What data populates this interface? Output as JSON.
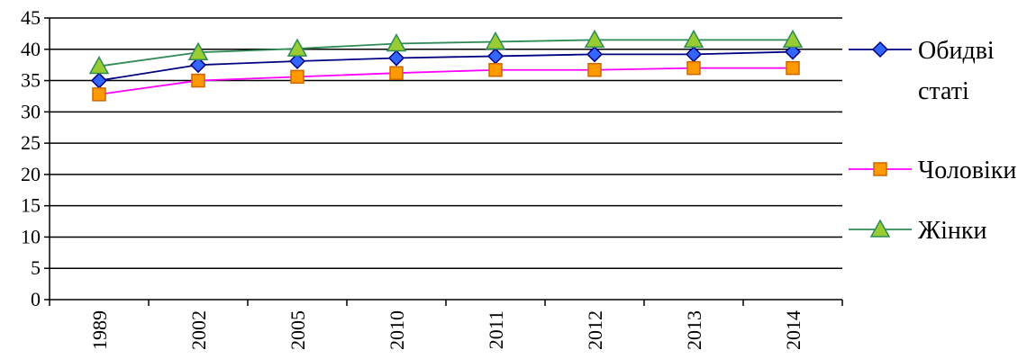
{
  "chart_data": {
    "type": "line",
    "categories": [
      "1989",
      "2002",
      "2005",
      "2010",
      "2011",
      "2012",
      "2013",
      "2014"
    ],
    "ylim": [
      0,
      45
    ],
    "yticks": [
      0,
      5,
      10,
      15,
      20,
      25,
      30,
      35,
      40,
      45
    ],
    "grid": "horizontal",
    "legend_position": "right",
    "series": [
      {
        "name_lines": [
          "Обидві",
          "статі"
        ],
        "name": "Обидві статі",
        "values": [
          35.0,
          37.5,
          38.1,
          38.6,
          38.9,
          39.2,
          39.2,
          39.6
        ],
        "line_color": "#000080",
        "marker": "diamond",
        "marker_fill": "#3366ff",
        "marker_stroke": "#000080"
      },
      {
        "name_lines": [
          "Чоловіки"
        ],
        "name": "Чоловіки",
        "values": [
          32.8,
          35.0,
          35.6,
          36.2,
          36.7,
          36.7,
          37.0,
          37.0
        ],
        "line_color": "#ff00ff",
        "marker": "square",
        "marker_fill": "#ff9900",
        "marker_stroke": "#cc6600"
      },
      {
        "name_lines": [
          "Жінки"
        ],
        "name": "Жінки",
        "values": [
          37.3,
          39.5,
          40.1,
          40.9,
          41.2,
          41.5,
          41.5,
          41.5
        ],
        "line_color": "#2e8b57",
        "marker": "triangle",
        "marker_fill": "#99cc33",
        "marker_stroke": "#2e8b57"
      }
    ]
  }
}
